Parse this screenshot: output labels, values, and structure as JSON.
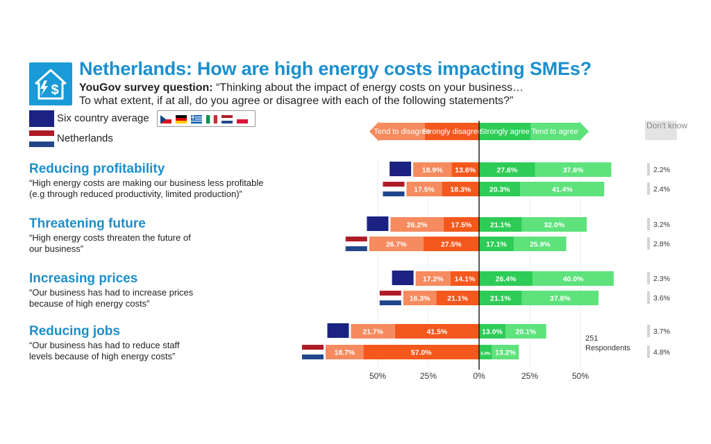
{
  "header": {
    "title": "Netherlands: How are high energy costs impacting SMEs?",
    "question_label": "YouGov survey question:",
    "question_line1": "“Thinking about the impact of energy costs on your business…",
    "question_line2": "To what extent, if at all, do you agree or disagree with each of the following statements?”",
    "logo_icon": "house-lightning-dollar-icon"
  },
  "legend": {
    "average_label": "Six country average",
    "netherlands_label": "Netherlands",
    "average_color": "#1b2281",
    "country_flags": [
      "CZ",
      "DE",
      "GR",
      "IT",
      "NL",
      "PL"
    ]
  },
  "categories": [
    {
      "title": "Reducing profitability",
      "desc_line1": "“High energy costs are making our business less profitable",
      "desc_line2": "(e.g through reduced productivity, limited production)”"
    },
    {
      "title": "Threatening future",
      "desc_line1": "“High energy costs threaten the future of",
      "desc_line2": "our business”"
    },
    {
      "title": "Increasing prices",
      "desc_line1": "“Our business has had to increase prices",
      "desc_line2": "because of high energy costs”"
    },
    {
      "title": "Reducing jobs",
      "desc_line1": "“Our business has had to reduce staff",
      "desc_line2": "levels because of high energy costs”"
    }
  ],
  "chart_data": {
    "type": "bar",
    "orientation": "horizontal-diverging",
    "response_labels": {
      "tend_disagree": "Tend to disagree",
      "strongly_disagree": "Strongly disagree",
      "strongly_agree": "Strongly agree",
      "tend_agree": "Tend to agree",
      "dont_know": "Don't know"
    },
    "colors": {
      "tend_disagree": "#f58b5e",
      "strongly_disagree": "#f4581c",
      "strongly_agree": "#2ecc57",
      "tend_agree": "#5ee27c",
      "dont_know": "#d4d4d4",
      "average_marker": "#1b2281"
    },
    "x_ticks": [
      {
        "value": -50,
        "label": "50%"
      },
      {
        "value": -25,
        "label": "25%"
      },
      {
        "value": 0,
        "label": "0%"
      },
      {
        "value": 25,
        "label": "25%"
      },
      {
        "value": 50,
        "label": "50%"
      }
    ],
    "rows": [
      {
        "category": 0,
        "series": "Six country average",
        "tend_disagree": 18.9,
        "strongly_disagree": 13.6,
        "strongly_agree": 27.6,
        "tend_agree": 37.6,
        "dont_know": 2.2
      },
      {
        "category": 0,
        "series": "Netherlands",
        "tend_disagree": 17.5,
        "strongly_disagree": 18.3,
        "strongly_agree": 20.3,
        "tend_agree": 41.4,
        "dont_know": 2.4
      },
      {
        "category": 1,
        "series": "Six country average",
        "tend_disagree": 26.2,
        "strongly_disagree": 17.5,
        "strongly_agree": 21.1,
        "tend_agree": 32.0,
        "dont_know": 3.2
      },
      {
        "category": 1,
        "series": "Netherlands",
        "tend_disagree": 26.7,
        "strongly_disagree": 27.5,
        "strongly_agree": 17.1,
        "tend_agree": 25.9,
        "dont_know": 2.8
      },
      {
        "category": 2,
        "series": "Six country average",
        "tend_disagree": 17.2,
        "strongly_disagree": 14.1,
        "strongly_agree": 26.4,
        "tend_agree": 40.0,
        "dont_know": 2.3
      },
      {
        "category": 2,
        "series": "Netherlands",
        "tend_disagree": 16.3,
        "strongly_disagree": 21.1,
        "strongly_agree": 21.1,
        "tend_agree": 37.8,
        "dont_know": 3.6
      },
      {
        "category": 3,
        "series": "Six country average",
        "tend_disagree": 21.7,
        "strongly_disagree": 41.5,
        "strongly_agree": 13.0,
        "tend_agree": 20.1,
        "dont_know": 3.7
      },
      {
        "category": 3,
        "series": "Netherlands",
        "tend_disagree": 18.7,
        "strongly_disagree": 57.0,
        "strongly_agree": 6.4,
        "tend_agree": 13.2,
        "dont_know": 4.8
      }
    ],
    "respondents_note": [
      "251",
      "Respondents"
    ]
  }
}
